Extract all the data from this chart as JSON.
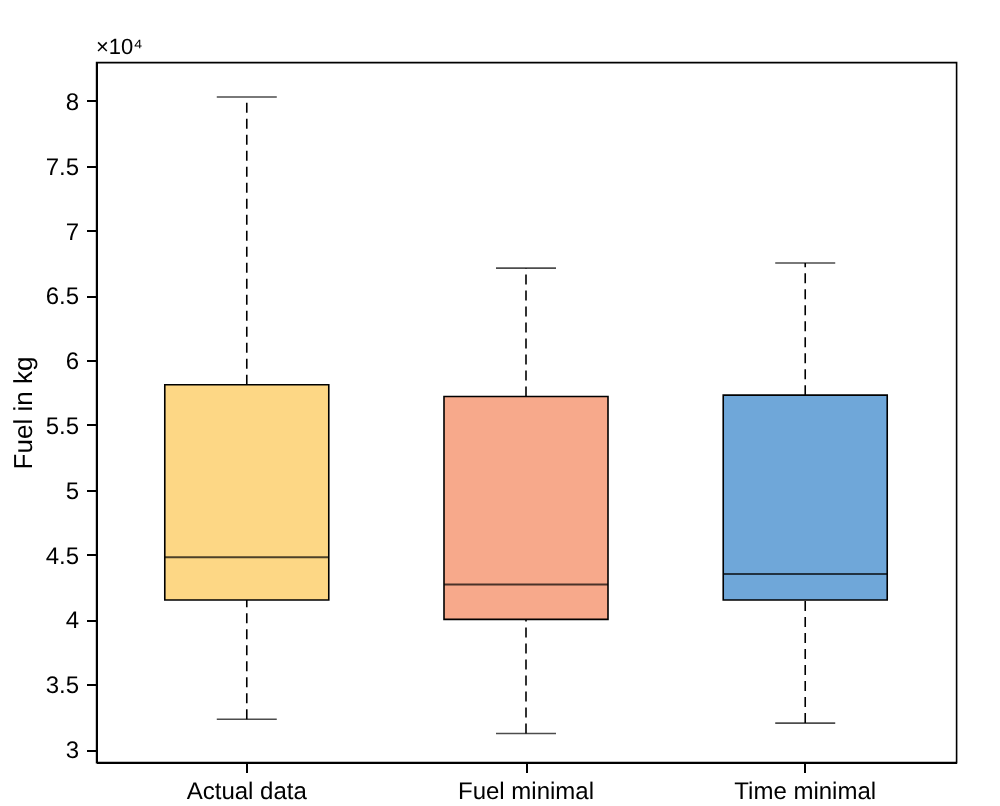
{
  "chart_data": {
    "type": "box",
    "ylabel": "Fuel in kg",
    "annotations": [
      "×10⁴"
    ],
    "categories": [
      "Actual data",
      "Fuel minimal",
      "Time minimal"
    ],
    "colors": [
      "#fdd785",
      "#f7a98b",
      "#6fa7d9"
    ],
    "boxes": [
      {
        "low": 3.23,
        "q1": 4.15,
        "median": 4.48,
        "q3": 5.81,
        "high": 8.03
      },
      {
        "low": 3.12,
        "q1": 4.0,
        "median": 4.27,
        "q3": 5.72,
        "high": 6.71
      },
      {
        "low": 3.2,
        "q1": 4.15,
        "median": 4.35,
        "q3": 5.73,
        "high": 6.75
      }
    ],
    "ylim": [
      2.9,
      8.3
    ],
    "yticks": [
      3,
      3.5,
      4,
      4.5,
      5,
      5.5,
      6,
      6.5,
      7,
      7.5,
      8
    ],
    "grid": false
  }
}
